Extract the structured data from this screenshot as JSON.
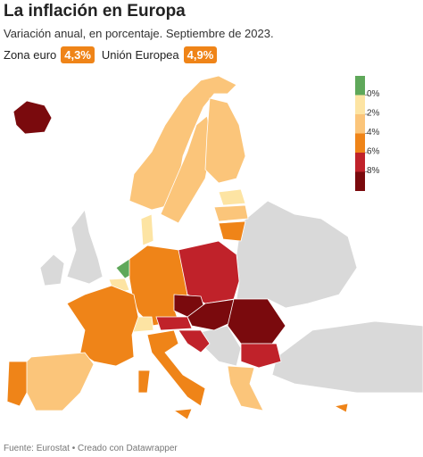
{
  "header": {
    "title": "La inflación en Europa",
    "subtitle": "Variación anual, en porcentaje. Septiembre de 2023.",
    "badges": [
      {
        "label": "Zona euro",
        "value": "4,3%"
      },
      {
        "label": "Unión Europea",
        "value": "4,9%"
      }
    ]
  },
  "legend": {
    "colors": [
      "#5fa85a",
      "#fde4a3",
      "#fbc57a",
      "#ef8418",
      "#c0222a",
      "#7a0a0d"
    ],
    "labels": [
      "0%",
      "2%",
      "4%",
      "6%",
      "8%"
    ]
  },
  "footer": "Fuente: Eurostat • Creado con Datawrapper"
}
